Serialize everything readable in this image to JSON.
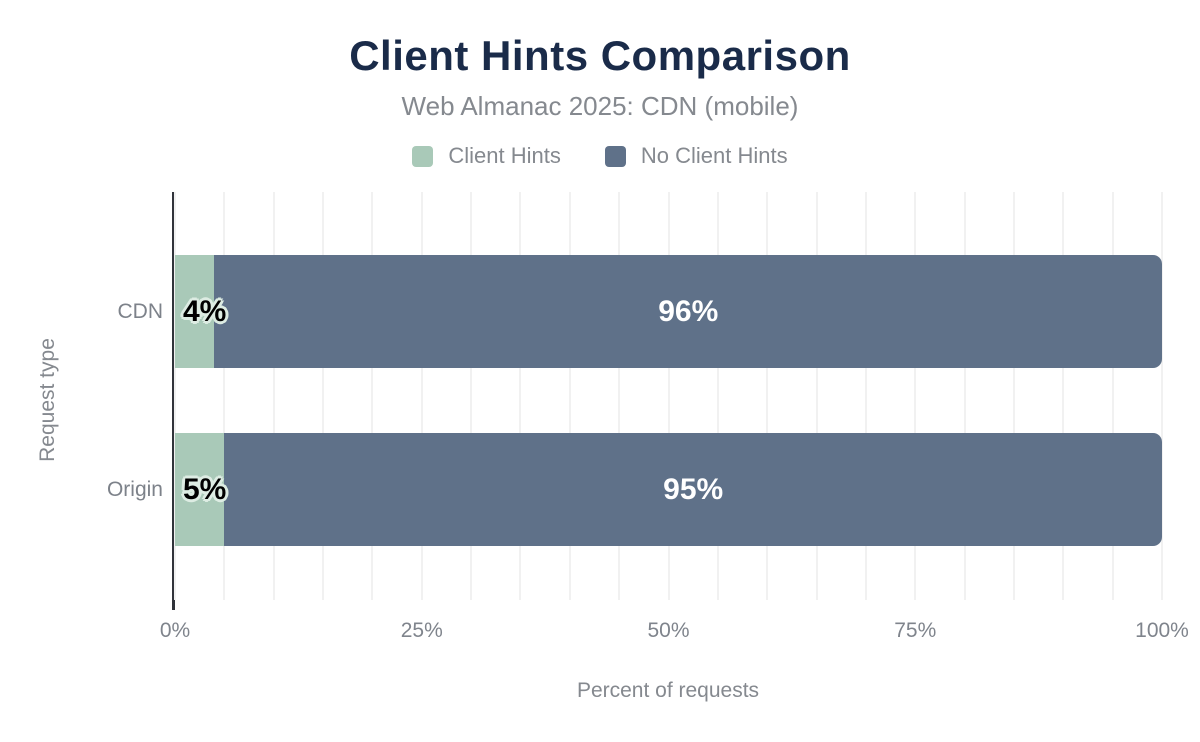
{
  "chart_data": {
    "type": "bar",
    "orientation": "horizontal",
    "stacked": true,
    "title": "Client Hints Comparison",
    "subtitle": "Web Almanac 2025: CDN (mobile)",
    "xlabel": "Percent of requests",
    "ylabel": "Request type",
    "categories": [
      "CDN",
      "Origin"
    ],
    "series": [
      {
        "name": "Client Hints",
        "color": "#a9c9b8",
        "values": [
          4,
          5
        ],
        "data_labels": [
          "4%",
          "5%"
        ],
        "label_style": "black-halo"
      },
      {
        "name": "No Client Hints",
        "color": "#5f7189",
        "values": [
          96,
          95
        ],
        "data_labels": [
          "96%",
          "95%"
        ],
        "label_style": "white-center"
      }
    ],
    "xlim": [
      0,
      100
    ],
    "x_ticks": [
      {
        "value": 0,
        "label": "0%"
      },
      {
        "value": 25,
        "label": "25%"
      },
      {
        "value": 50,
        "label": "50%"
      },
      {
        "value": 75,
        "label": "75%"
      },
      {
        "value": 100,
        "label": "100%"
      }
    ],
    "gridline_step": 5,
    "grid": true,
    "legend_position": "top"
  },
  "theme": {
    "title_color": "#1a2b49",
    "subtitle_color": "#85898f",
    "axis_text_color": "#7f848c",
    "gridline_color": "#f1f1f1",
    "axis_line_color": "#30333a",
    "background": "#ffffff",
    "halo_color": "#ddece3"
  }
}
